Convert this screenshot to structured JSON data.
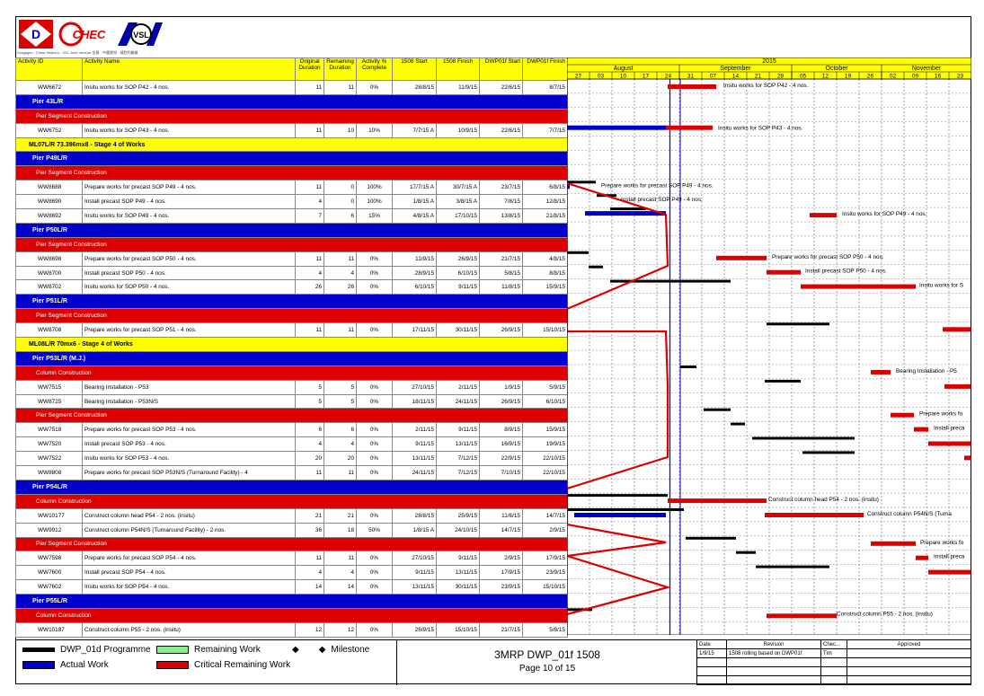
{
  "logo_tagline": "Dragages - China Harbour - VSL Joint Venture 金基 · 中國港灣 · 威胜利聯營",
  "logos": [
    {
      "name": "dragages-logo",
      "text": "D"
    },
    {
      "name": "chec-logo",
      "text": "CHEC"
    },
    {
      "name": "vsl-logo",
      "text": "VSL"
    }
  ],
  "columns": [
    "Activity ID",
    "Activity Name",
    "Original Duration",
    "Remaining Duration",
    "Activity % Complete",
    "1508 Start",
    "1508 Finish",
    "DWP01f Start",
    "DWP01f Finish"
  ],
  "rows": [
    {
      "type": "row",
      "id": "WW6672",
      "name": "Insitu works for SOP P42 - 4 nos.",
      "od": "11",
      "rd": "11",
      "pct": "0%",
      "s": "28/8/15",
      "f": "11/9/15",
      "ds": "22/6/15",
      "df": "8/7/15"
    },
    {
      "type": "blue",
      "label": "Pier 43L/R"
    },
    {
      "type": "red",
      "label": "Pier Segment Construction"
    },
    {
      "type": "row",
      "id": "WW6752",
      "name": "Insitu works for SOP P43 - 4 nos.",
      "od": "11",
      "rd": "10",
      "pct": "10%",
      "s": "7/7/15 A",
      "f": "10/9/15",
      "ds": "22/6/15",
      "df": "7/7/15"
    },
    {
      "type": "yellow",
      "label": "ML07L/R 73.396mx8 - Stage 4 of Works"
    },
    {
      "type": "blue",
      "label": "Pier P49L/R"
    },
    {
      "type": "red",
      "label": "Pier Segment Construction"
    },
    {
      "type": "row",
      "id": "WW8688",
      "name": "Prepare works for precast SOP P49 - 4 nos.",
      "od": "11",
      "rd": "0",
      "pct": "100%",
      "s": "17/7/15 A",
      "f": "30/7/15 A",
      "ds": "23/7/15",
      "df": "6/8/15"
    },
    {
      "type": "row",
      "id": "WW8690",
      "name": "Install precast SOP P49 - 4 nos.",
      "od": "4",
      "rd": "0",
      "pct": "100%",
      "s": "1/8/15 A",
      "f": "3/8/15 A",
      "ds": "7/8/15",
      "df": "12/8/15"
    },
    {
      "type": "row",
      "id": "WW8692",
      "name": "Insitu works for SOP P49 - 4 nos.",
      "od": "7",
      "rd": "6",
      "pct": "15%",
      "s": "4/8/15 A",
      "f": "17/10/15",
      "ds": "13/8/15",
      "df": "21/8/15"
    },
    {
      "type": "blue",
      "label": "Pier P50L/R"
    },
    {
      "type": "red",
      "label": "Pier Segment Construction"
    },
    {
      "type": "row",
      "id": "WW8698",
      "name": "Prepare works for precast SOP P50 - 4 nos.",
      "od": "11",
      "rd": "11",
      "pct": "0%",
      "s": "11/9/15",
      "f": "26/9/15",
      "ds": "21/7/15",
      "df": "4/8/15"
    },
    {
      "type": "row",
      "id": "WW8700",
      "name": "Install precast SOP P50 - 4 nos.",
      "od": "4",
      "rd": "4",
      "pct": "0%",
      "s": "28/9/15",
      "f": "6/10/15",
      "ds": "5/8/15",
      "df": "8/8/15"
    },
    {
      "type": "row",
      "id": "WW8702",
      "name": "Insitu works for SOP P50 - 4 nos.",
      "od": "26",
      "rd": "26",
      "pct": "0%",
      "s": "6/10/15",
      "f": "9/11/15",
      "ds": "11/8/15",
      "df": "15/9/15"
    },
    {
      "type": "blue",
      "label": "Pier P51L/R"
    },
    {
      "type": "red",
      "label": "Pier Segment Construction"
    },
    {
      "type": "row",
      "id": "WW8708",
      "name": "Prepare works for precast SOP P51 - 4 nos.",
      "od": "11",
      "rd": "11",
      "pct": "0%",
      "s": "17/11/15",
      "f": "30/11/15",
      "ds": "26/9/15",
      "df": "15/10/15"
    },
    {
      "type": "yellow",
      "label": "ML08L/R 70mx6 - Stage 4 of Works"
    },
    {
      "type": "blue",
      "label": "Pier P53L/R (M.J.)"
    },
    {
      "type": "red",
      "label": "Column Construction"
    },
    {
      "type": "row",
      "id": "WW7515",
      "name": "Bearing Installation - P53",
      "od": "5",
      "rd": "5",
      "pct": "0%",
      "s": "27/10/15",
      "f": "2/11/15",
      "ds": "1/9/15",
      "df": "5/9/15"
    },
    {
      "type": "row",
      "id": "WW8725",
      "name": "Bearing Installation - P53N/S",
      "od": "5",
      "rd": "5",
      "pct": "0%",
      "s": "18/11/15",
      "f": "24/11/15",
      "ds": "26/9/15",
      "df": "6/10/15"
    },
    {
      "type": "red",
      "label": "Pier Segment Construction"
    },
    {
      "type": "row",
      "id": "WW7518",
      "name": "Prepare works for precast SOP P53 - 4 nos.",
      "od": "6",
      "rd": "6",
      "pct": "0%",
      "s": "2/11/15",
      "f": "9/11/15",
      "ds": "8/9/15",
      "df": "15/9/15"
    },
    {
      "type": "row",
      "id": "WW7520",
      "name": "Install precast SOP P53 - 4 nos.",
      "od": "4",
      "rd": "4",
      "pct": "0%",
      "s": "9/11/15",
      "f": "13/11/15",
      "ds": "16/9/15",
      "df": "19/9/15"
    },
    {
      "type": "row",
      "id": "WW7522",
      "name": "Insitu works for SOP P53 - 4 nos.",
      "od": "20",
      "rd": "20",
      "pct": "0%",
      "s": "13/11/15",
      "f": "7/12/15",
      "ds": "22/9/15",
      "df": "22/10/15"
    },
    {
      "type": "row",
      "id": "WW8808",
      "name": "Prepare works for precast SOP P53N/S (Turnaround Facility) - 4",
      "od": "11",
      "rd": "11",
      "pct": "0%",
      "s": "24/11/15",
      "f": "7/12/15",
      "ds": "7/10/15",
      "df": "22/10/15"
    },
    {
      "type": "blue",
      "label": "Pier P54L/R"
    },
    {
      "type": "red",
      "label": "Column Construction"
    },
    {
      "type": "row",
      "id": "WW10177",
      "name": "Construct column head P54 - 2 nos. (insitu)",
      "od": "21",
      "rd": "21",
      "pct": "0%",
      "s": "28/8/15",
      "f": "25/9/15",
      "ds": "11/6/15",
      "df": "14/7/15"
    },
    {
      "type": "row",
      "id": "WW9912",
      "name": "Construct column P54N/S (Turnaround Facility) - 2 nos.",
      "od": "36",
      "rd": "18",
      "pct": "50%",
      "s": "1/8/15 A",
      "f": "24/10/15",
      "ds": "14/7/15",
      "df": "2/9/15"
    },
    {
      "type": "red",
      "label": "Pier Segment Construction"
    },
    {
      "type": "row",
      "id": "WW7598",
      "name": "Prepare works for precast SOP P54 - 4 nos.",
      "od": "11",
      "rd": "11",
      "pct": "0%",
      "s": "27/10/15",
      "f": "9/11/15",
      "ds": "2/9/15",
      "df": "17/9/15"
    },
    {
      "type": "row",
      "id": "WW7600",
      "name": "Install precast SOP P54 - 4 nos.",
      "od": "4",
      "rd": "4",
      "pct": "0%",
      "s": "9/11/15",
      "f": "13/11/15",
      "ds": "17/9/15",
      "df": "23/9/15"
    },
    {
      "type": "row",
      "id": "WW7602",
      "name": "Insitu works for SOP P54 - 4 nos.",
      "od": "14",
      "rd": "14",
      "pct": "0%",
      "s": "13/11/15",
      "f": "30/11/15",
      "ds": "23/9/15",
      "df": "15/10/15"
    },
    {
      "type": "blue",
      "label": "Pier P55L/R"
    },
    {
      "type": "red",
      "label": "Column Construction"
    },
    {
      "type": "row",
      "id": "WW10187",
      "name": "Construct column P55 - 2 nos. (insitu)",
      "od": "12",
      "rd": "12",
      "pct": "0%",
      "s": "26/9/15",
      "f": "15/10/15",
      "ds": "21/7/15",
      "df": "5/8/15"
    }
  ],
  "timeline": {
    "year": "2015",
    "months": [
      "August",
      "September",
      "October",
      "November"
    ],
    "weeks": [
      "27",
      "03",
      "10",
      "17",
      "24",
      "31",
      "07",
      "14",
      "21",
      "28",
      "05",
      "12",
      "19",
      "26",
      "02",
      "09",
      "16",
      "23"
    ]
  },
  "gantt_labels": [
    "Insitu works for SOP P42 - 4 nos.",
    "Insitu works for SOP P43 - 4 nos.",
    "Prepare works for precast SOP P49 - 4 nos.",
    "Install precast SOP P49 - 4 nos.",
    "Insitu works for SOP P49 - 4 nos.",
    "Prepare works for precast SOP P50 - 4 nos.",
    "Install precast SOP P50 - 4 nos.",
    "Insitu works for S",
    "Bearing Installation - P5",
    "Prepare works fo",
    "Install preca",
    "Construct column head P54 - 2 nos. (insitu)",
    "Construct column P54N/S (Turna",
    "Prepare works fo",
    "Install preca",
    "Construct column P55 - 2 nos. (insitu)"
  ],
  "legend": {
    "baseline": "DWP_01d Programme",
    "actual": "Actual Work",
    "remaining": "Remaining Work",
    "critical": "Critical Remaining Work",
    "milestone": "Milestone"
  },
  "colors": {
    "baseline": "#000000",
    "actual": "#0000cc",
    "remaining": "#90ee90",
    "critical": "#dd0000",
    "band_yellow": "#ffff00",
    "band_blue": "#0000cc",
    "band_red": "#dd0000"
  },
  "title_block": {
    "title": "3MRP DWP_01f 1508",
    "page": "Page 10 of 15"
  },
  "revision": {
    "headers": [
      "Date",
      "Revision",
      "Chec...",
      "Approved"
    ],
    "rows": [
      [
        "1/9/15",
        "1508 rolling based on DWP01f",
        "Tim",
        ""
      ]
    ]
  }
}
